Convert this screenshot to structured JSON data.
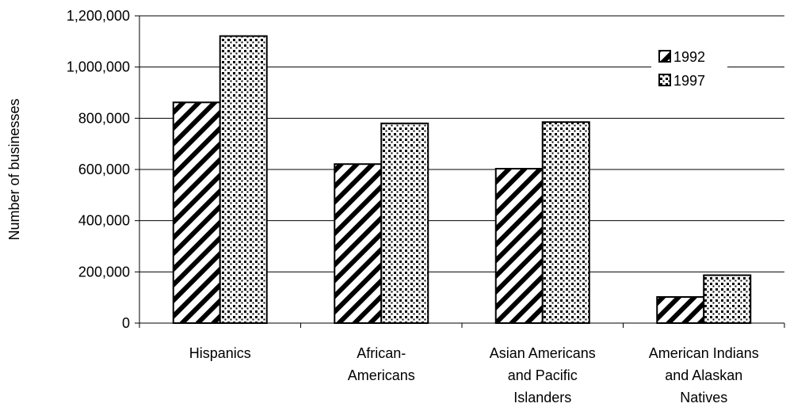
{
  "chart_data": {
    "type": "bar",
    "title": "",
    "xlabel": "",
    "ylabel": "Number of businesses",
    "ylim": [
      0,
      1200000
    ],
    "yticks": [
      0,
      200000,
      400000,
      600000,
      800000,
      1000000,
      1200000
    ],
    "ytick_labels": [
      "0",
      "200,000",
      "400,000",
      "600,000",
      "800,000",
      "1,000,000",
      "1,200,000"
    ],
    "categories": [
      [
        "Hispanics"
      ],
      [
        "African-",
        "Americans"
      ],
      [
        "Asian Americans",
        "and Pacific",
        "Islanders"
      ],
      [
        "American Indians",
        "and Alaskan",
        "Natives"
      ]
    ],
    "series": [
      {
        "name": "1992",
        "values": [
          862000,
          621000,
          603000,
          102000
        ],
        "pattern": "diagonal-stripes"
      },
      {
        "name": "1997",
        "values": [
          1121000,
          780000,
          785000,
          187000
        ],
        "pattern": "dots"
      }
    ],
    "grid": true,
    "legend_position": "top-right"
  }
}
